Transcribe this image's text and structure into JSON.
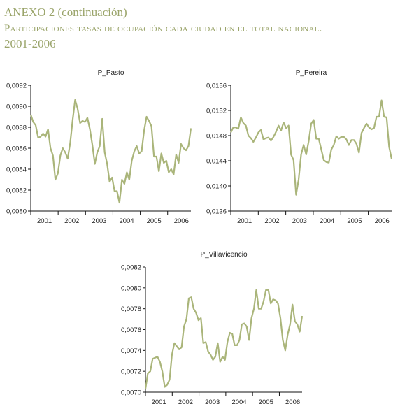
{
  "header": {
    "annex": "ANEXO 2 (continuación)",
    "subtitle": "Participaciones tasas de ocupación cada ciudad en el total nacional.",
    "years": "2001-2006"
  },
  "chart_data": [
    {
      "type": "line",
      "title": "P_Pasto",
      "xlabel": "",
      "ylabel": "",
      "x_start": 2000.5,
      "x_end": 2006.35,
      "xticks": [
        2001,
        2002,
        2003,
        2004,
        2005,
        2006
      ],
      "ylim": [
        0.008,
        0.0092
      ],
      "yticks": [
        "0,0080",
        "0,0082",
        "0,0084",
        "0,0086",
        "0,0088",
        "0,0090",
        "0,0092"
      ],
      "grid": false,
      "color": "#aab57a",
      "values": [
        0.00892,
        0.00885,
        0.00882,
        0.0087,
        0.00871,
        0.00874,
        0.00871,
        0.00878,
        0.0086,
        0.00853,
        0.0083,
        0.00836,
        0.00853,
        0.0086,
        0.00856,
        0.0085,
        0.00865,
        0.00887,
        0.00906,
        0.00898,
        0.00884,
        0.00886,
        0.00885,
        0.00889,
        0.00878,
        0.00863,
        0.00845,
        0.00856,
        0.00862,
        0.00888,
        0.00856,
        0.00845,
        0.00828,
        0.00832,
        0.00819,
        0.00819,
        0.00808,
        0.0083,
        0.00826,
        0.00837,
        0.0083,
        0.00848,
        0.00857,
        0.00862,
        0.00855,
        0.00857,
        0.00877,
        0.0089,
        0.00886,
        0.00881,
        0.00852,
        0.00852,
        0.00838,
        0.00855,
        0.00846,
        0.00848,
        0.00837,
        0.0084,
        0.00835,
        0.00854,
        0.00846,
        0.00864,
        0.0086,
        0.00858,
        0.00862,
        0.00879
      ]
    },
    {
      "type": "line",
      "title": "P_Pereira",
      "xlabel": "",
      "ylabel": "",
      "x_start": 2000.5,
      "x_end": 2006.35,
      "xticks": [
        2001,
        2002,
        2003,
        2004,
        2005,
        2006
      ],
      "ylim": [
        0.0136,
        0.0156
      ],
      "yticks": [
        "0,0136",
        "0,0140",
        "0,0144",
        "0,0148",
        "0,0152",
        "0,0156"
      ],
      "grid": false,
      "color": "#aab57a",
      "values": [
        0.01485,
        0.01493,
        0.01493,
        0.01491,
        0.01509,
        0.015,
        0.01496,
        0.0148,
        0.01476,
        0.0147,
        0.01477,
        0.01485,
        0.01489,
        0.01474,
        0.01476,
        0.01477,
        0.01472,
        0.01478,
        0.01486,
        0.01496,
        0.01488,
        0.01501,
        0.01492,
        0.01496,
        0.0145,
        0.01441,
        0.01386,
        0.0141,
        0.0145,
        0.01465,
        0.0145,
        0.01471,
        0.01499,
        0.01505,
        0.01475,
        0.01475,
        0.01458,
        0.01441,
        0.01438,
        0.01437,
        0.01458,
        0.01465,
        0.01479,
        0.01475,
        0.01478,
        0.01478,
        0.01474,
        0.01465,
        0.01473,
        0.01473,
        0.01467,
        0.01453,
        0.01484,
        0.01492,
        0.01499,
        0.01493,
        0.0149,
        0.01492,
        0.0151,
        0.0151,
        0.01536,
        0.0151,
        0.01509,
        0.01462,
        0.01443
      ]
    },
    {
      "type": "line",
      "title": "P_Villavicencio",
      "xlabel": "",
      "ylabel": "",
      "x_start": 2000.5,
      "x_end": 2006.35,
      "xticks": [
        2001,
        2002,
        2003,
        2004,
        2005,
        2006
      ],
      "ylim": [
        0.007,
        0.0082
      ],
      "yticks": [
        "0,0070",
        "0,0072",
        "0,0074",
        "0,0076",
        "0,0078",
        "0,0080",
        "0,0082"
      ],
      "grid": false,
      "color": "#aab57a",
      "values": [
        0.00703,
        0.00718,
        0.0072,
        0.00732,
        0.00733,
        0.00734,
        0.00729,
        0.0072,
        0.00705,
        0.00707,
        0.00712,
        0.00736,
        0.00747,
        0.00744,
        0.00741,
        0.00743,
        0.00763,
        0.0077,
        0.0079,
        0.00791,
        0.0078,
        0.00776,
        0.00769,
        0.00771,
        0.00747,
        0.00748,
        0.00739,
        0.00736,
        0.00731,
        0.00734,
        0.00747,
        0.00729,
        0.00734,
        0.00731,
        0.00748,
        0.00757,
        0.00756,
        0.00745,
        0.00745,
        0.0075,
        0.00765,
        0.00766,
        0.00763,
        0.0075,
        0.00771,
        0.0078,
        0.00798,
        0.0078,
        0.0078,
        0.00787,
        0.00798,
        0.00798,
        0.00785,
        0.00789,
        0.00788,
        0.00785,
        0.00771,
        0.0075,
        0.0074,
        0.00755,
        0.00765,
        0.00784,
        0.00768,
        0.00765,
        0.00758,
        0.00773
      ]
    }
  ]
}
